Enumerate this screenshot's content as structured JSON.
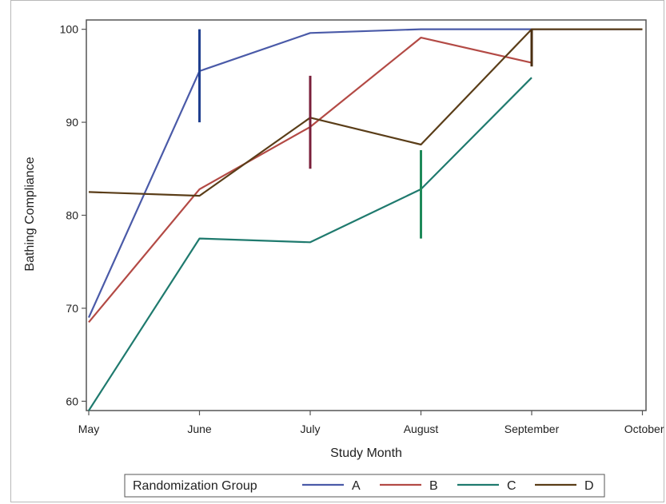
{
  "chart_data": {
    "type": "line",
    "xlabel": "Study Month",
    "ylabel": "Bathing Compliance",
    "categories": [
      "May",
      "June",
      "July",
      "August",
      "September",
      "October"
    ],
    "ylim": [
      59,
      101
    ],
    "yticks": [
      60,
      70,
      80,
      90,
      100
    ],
    "grid": false,
    "legend": {
      "title": "Randomization Group",
      "placement": "bottom",
      "entries": [
        "A",
        "B",
        "C",
        "D"
      ]
    },
    "series": [
      {
        "name": "A",
        "color": "#4a5aa8",
        "values": [
          69,
          95.5,
          99.6,
          100,
          100,
          100
        ]
      },
      {
        "name": "B",
        "color": "#b34a45",
        "values": [
          68.5,
          82.8,
          89.5,
          99.1,
          96.4,
          null
        ]
      },
      {
        "name": "C",
        "color": "#1f7a6e",
        "values": [
          59,
          77.5,
          77.1,
          82.8,
          94.8,
          null
        ]
      },
      {
        "name": "D",
        "color": "#5a3d18",
        "values": [
          82.5,
          82.1,
          90.5,
          87.6,
          100,
          100
        ]
      }
    ],
    "vertical_markers": [
      {
        "category": "June",
        "low": 90,
        "high": 100,
        "color": "#1f3f8f"
      },
      {
        "category": "July",
        "low": 85,
        "high": 95,
        "color": "#7a1f3a"
      },
      {
        "category": "August",
        "low": 77.5,
        "high": 87,
        "color": "#1f8a5a"
      },
      {
        "category": "September",
        "low": 96,
        "high": 100,
        "color": "#4a2e10"
      }
    ]
  }
}
